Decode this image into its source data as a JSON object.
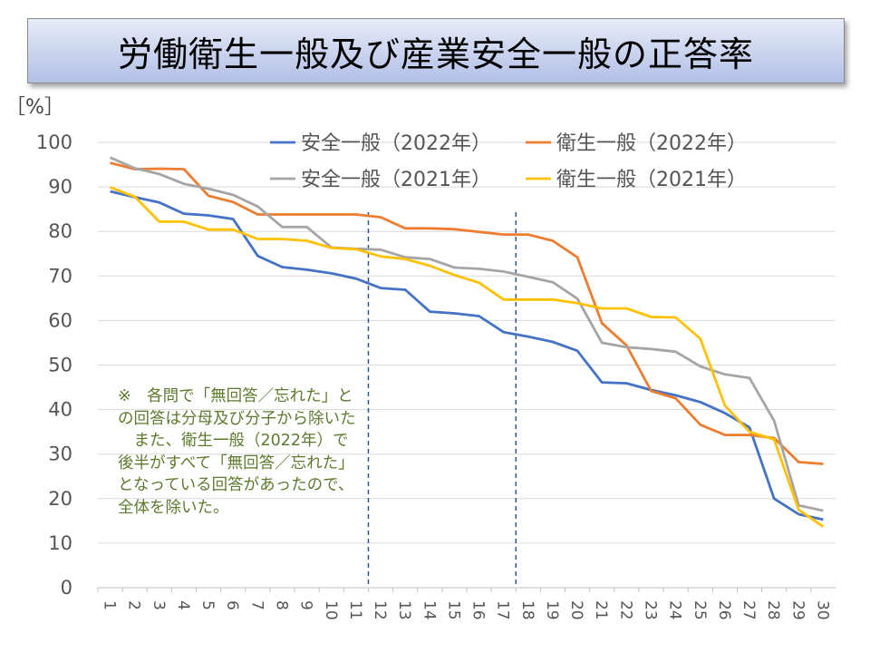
{
  "chart_data": {
    "type": "line",
    "title": "労働衛生一般及び産業安全一般の正答率",
    "ylabel": "［%］",
    "ylim": [
      0,
      100
    ],
    "yticks": [
      0,
      10,
      20,
      30,
      40,
      50,
      60,
      70,
      80,
      90,
      100
    ],
    "x": [
      1,
      2,
      3,
      4,
      5,
      6,
      7,
      8,
      9,
      10,
      11,
      12,
      13,
      14,
      15,
      16,
      17,
      18,
      19,
      20,
      21,
      22,
      23,
      24,
      25,
      26,
      27,
      28,
      29,
      30
    ],
    "series": [
      {
        "name": "安全一般（2022年）",
        "color": "#4472c4",
        "values": [
          89.0,
          87.7,
          86.5,
          84.0,
          83.6,
          82.8,
          74.5,
          72.0,
          71.4,
          70.6,
          69.4,
          67.3,
          66.9,
          62.0,
          61.6,
          61.0,
          57.4,
          56.4,
          55.2,
          53.2,
          46.1,
          45.9,
          44.4,
          43.2,
          41.7,
          39.2,
          36.0,
          20.0,
          16.5,
          15.3
        ]
      },
      {
        "name": "衛生一般（2022年）",
        "color": "#ed7d31",
        "values": [
          95.4,
          94.0,
          94.1,
          94.0,
          88.0,
          86.6,
          83.8,
          83.8,
          83.8,
          83.8,
          83.8,
          83.2,
          80.7,
          80.7,
          80.5,
          79.9,
          79.3,
          79.3,
          77.9,
          74.2,
          59.4,
          54.4,
          44.2,
          42.5,
          36.6,
          34.3,
          34.3,
          33.6,
          28.2,
          27.8
        ]
      },
      {
        "name": "安全一般（2021年）",
        "color": "#a5a5a5",
        "values": [
          96.6,
          94.2,
          92.9,
          90.7,
          89.6,
          88.2,
          85.6,
          81.0,
          81.0,
          76.4,
          76.1,
          75.9,
          74.2,
          73.8,
          71.9,
          71.6,
          71.0,
          69.8,
          68.6,
          64.9,
          55.0,
          54.0,
          53.6,
          53.0,
          49.7,
          47.9,
          47.1,
          37.5,
          18.5,
          17.3
        ]
      },
      {
        "name": "衛生一般（2021年）",
        "color": "#ffc000",
        "values": [
          89.9,
          87.8,
          82.2,
          82.2,
          80.4,
          80.4,
          78.3,
          78.3,
          77.9,
          76.3,
          76.0,
          74.4,
          73.8,
          72.3,
          70.2,
          68.5,
          64.7,
          64.7,
          64.7,
          63.9,
          62.7,
          62.7,
          60.8,
          60.7,
          55.9,
          40.9,
          35.0,
          33.3,
          17.5,
          13.7
        ]
      }
    ],
    "reference_lines": [
      11.5,
      17.5
    ]
  },
  "legend": {
    "s1": "安全一般（2022年）",
    "s2": "衛生一般（2022年）",
    "s3": "安全一般（2021年）",
    "s4": "衛生一般（2021年）"
  },
  "note": "※　各問で「無回答／忘れた」との回答は分母及び分子から除いた\n　また、衛生一般（2022年）で後半がすべて「無回答／忘れた」となっている回答があったので、全体を除いた。"
}
